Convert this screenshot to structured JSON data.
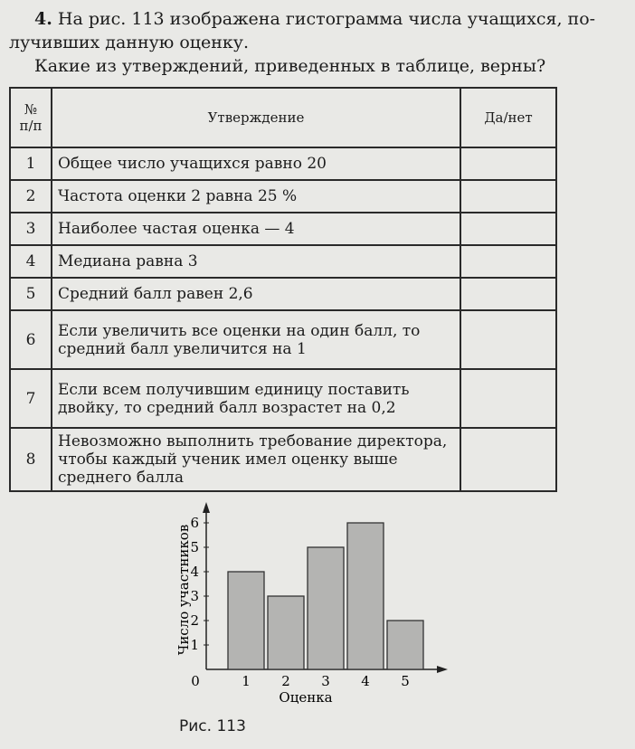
{
  "task": {
    "number": "4.",
    "line1": "На рис. 113 изображена гистограмма числа учащихся, по-",
    "line2": "лучивших данную оценку.",
    "question": "Какие из утверждений, приведенных в таблице, верны?"
  },
  "table": {
    "headers": [
      "№ п/п",
      "Утверждение",
      "Да/нет"
    ],
    "rows": [
      {
        "n": "1",
        "text": "Общее число учащихся равно 20",
        "answer": ""
      },
      {
        "n": "2",
        "text": "Частота оценки 2 равна 25 %",
        "answer": ""
      },
      {
        "n": "3",
        "text": "Наиболее частая оценка — 4",
        "answer": ""
      },
      {
        "n": "4",
        "text": "Медиана равна 3",
        "answer": ""
      },
      {
        "n": "5",
        "text": "Средний балл равен 2,6",
        "answer": ""
      },
      {
        "n": "6",
        "text": "Если увеличить все оценки на один балл, то средний балл увеличится на 1",
        "answer": ""
      },
      {
        "n": "7",
        "text": "Если всем получившим единицу поставить двойку, то средний балл возрастет на 0,2",
        "answer": ""
      },
      {
        "n": "8",
        "text": "Невозможно выполнить требование директора, чтобы каждый ученик имел оценку выше среднего балла",
        "answer": ""
      }
    ]
  },
  "chart_data": {
    "type": "bar",
    "categories": [
      "1",
      "2",
      "3",
      "4",
      "5"
    ],
    "values": [
      4,
      3,
      5,
      6,
      2
    ],
    "xlabel": "Оценка",
    "ylabel": "Число участников",
    "yticks": [
      "1",
      "2",
      "3",
      "4",
      "5",
      "6"
    ],
    "origin_label": "0",
    "ylim": [
      0,
      6.5
    ],
    "grid": false,
    "bar_color": "#b4b4b2"
  },
  "caption": "Рис. 113"
}
